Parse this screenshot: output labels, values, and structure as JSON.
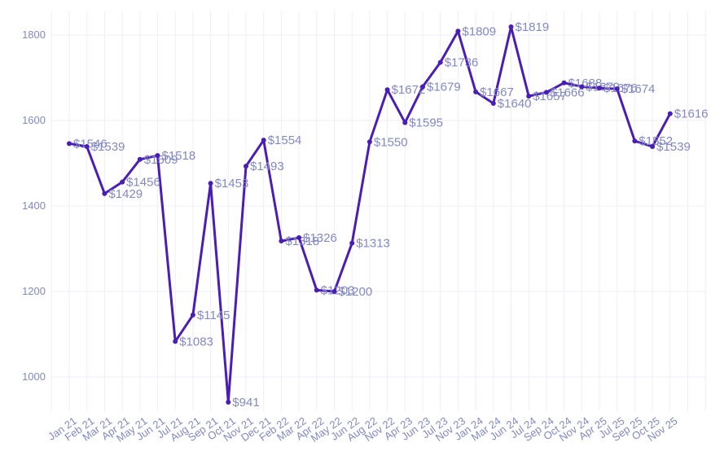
{
  "chart_data": {
    "type": "line",
    "title": "",
    "xlabel": "",
    "ylabel": "",
    "categories": [
      "Jan 21",
      "Feb 21",
      "Mar 21",
      "Apr 21",
      "May 21",
      "Jun 21",
      "Jul 21",
      "Aug 21",
      "Sep 21",
      "Oct 21",
      "Nov 21",
      "Dec 21",
      "Feb 22",
      "Mar 22",
      "Apr 22",
      "May 22",
      "Jun 22",
      "Aug 22",
      "Nov 22",
      "Apr 23",
      "Jun 23",
      "Jul 23",
      "Nov 23",
      "Jan 24",
      "Mar 24",
      "Jun 24",
      "Jul 24",
      "Sep 24",
      "Oct 24",
      "Nov 24",
      "Apr 25",
      "Jul 25",
      "Sep 25",
      "Oct 25",
      "Nov 25"
    ],
    "values": [
      1546,
      1539,
      1429,
      1456,
      1509,
      1518,
      1083,
      1145,
      1453,
      941,
      1493,
      1554,
      1318,
      1326,
      1203,
      1200,
      1313,
      1550,
      1672,
      1595,
      1679,
      1736,
      1809,
      1667,
      1640,
      1819,
      1657,
      1666,
      1688,
      1679,
      1676,
      1674,
      1552,
      1539,
      1616
    ],
    "point_labels": [
      "$1546",
      "$1539",
      "$1429",
      "$1456",
      "$1509",
      "$1518",
      "$1083",
      "$1145",
      "$1453",
      "$941",
      "$1493",
      "$1554",
      "$1318",
      "$1326",
      "$1203",
      "$1200",
      "$1313",
      "$1550",
      "$1672",
      "$1595",
      "$1679",
      "$1736",
      "$1809",
      "$1667",
      "$1640",
      "$1819",
      "$1657",
      "$1666",
      "$1688",
      "$1679",
      "$1676",
      "$1674",
      "$1552",
      "$1539",
      "$1616"
    ],
    "y_ticks": [
      1000,
      1200,
      1400,
      1600,
      1800
    ],
    "ylim": [
      900,
      1870
    ],
    "grid": true,
    "legend_position": "none",
    "colors": {
      "line": "#4a1db6",
      "marker": "#4a1db6",
      "point_label": "#8289c5",
      "axis_label": "#8289c5",
      "grid_line": "#efedf8",
      "background": "#ffffff"
    }
  }
}
